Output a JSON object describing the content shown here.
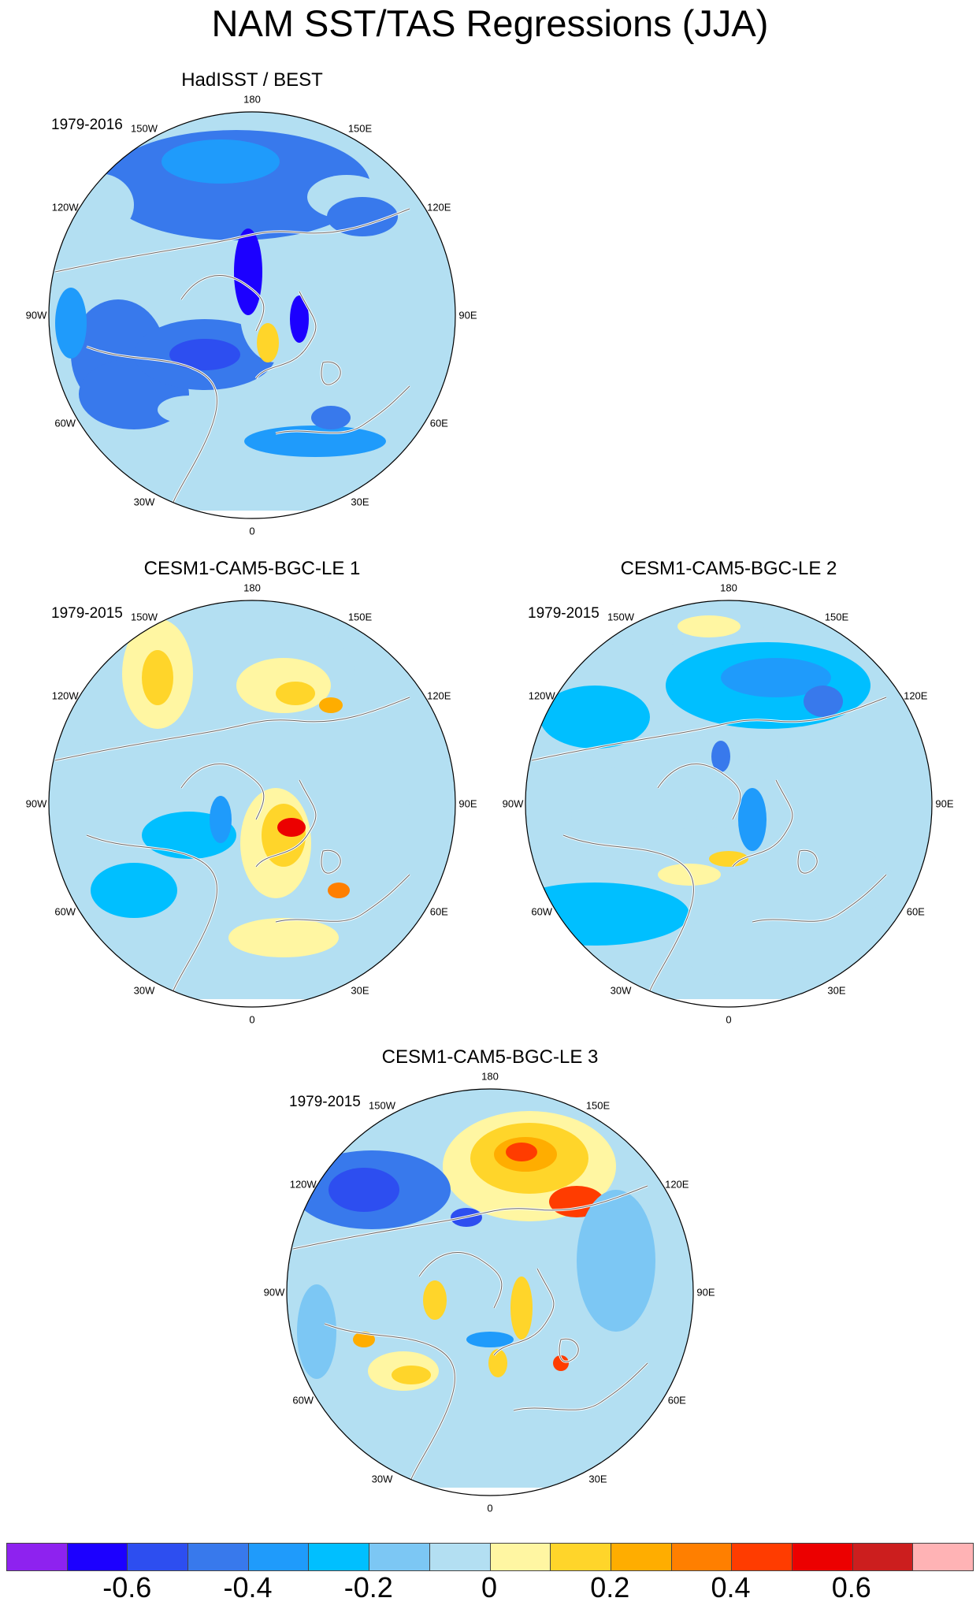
{
  "title": "NAM SST/TAS Regressions (JJA)",
  "longitude_labels": [
    "180",
    "150E",
    "120E",
    "90E",
    "60E",
    "30E",
    "0",
    "30W",
    "60W",
    "90W",
    "120W",
    "150W"
  ],
  "panels": [
    {
      "title": "HadISST / BEST",
      "years": "1979-2016",
      "blobs": [
        {
          "x": -20,
          "y": -165,
          "rx": 170,
          "ry": 70,
          "lvl": 3
        },
        {
          "x": -40,
          "y": -195,
          "rx": 75,
          "ry": 28,
          "lvl": 4
        },
        {
          "x": -195,
          "y": -140,
          "rx": 45,
          "ry": 40,
          "lvl": 7
        },
        {
          "x": 120,
          "y": -150,
          "rx": 50,
          "ry": 28,
          "lvl": 7
        },
        {
          "x": 140,
          "y": -125,
          "rx": 45,
          "ry": 25,
          "lvl": 3
        },
        {
          "x": -170,
          "y": 50,
          "rx": 60,
          "ry": 70,
          "lvl": 3
        },
        {
          "x": -150,
          "y": 100,
          "rx": 70,
          "ry": 45,
          "lvl": 3
        },
        {
          "x": -60,
          "y": 50,
          "rx": 90,
          "ry": 45,
          "lvl": 3
        },
        {
          "x": -60,
          "y": 50,
          "rx": 45,
          "ry": 20,
          "lvl": 2
        },
        {
          "x": -80,
          "y": 120,
          "rx": 40,
          "ry": 18,
          "lvl": 7
        },
        {
          "x": 30,
          "y": 0,
          "rx": 45,
          "ry": 60,
          "lvl": 7
        },
        {
          "x": -5,
          "y": -55,
          "rx": 18,
          "ry": 55,
          "lvl": 1
        },
        {
          "x": 60,
          "y": 5,
          "rx": 12,
          "ry": 30,
          "lvl": 1
        },
        {
          "x": 20,
          "y": 35,
          "rx": 14,
          "ry": 25,
          "lvl": 9
        },
        {
          "x": 80,
          "y": 160,
          "rx": 90,
          "ry": 20,
          "lvl": 4
        },
        {
          "x": 100,
          "y": 130,
          "rx": 25,
          "ry": 15,
          "lvl": 3
        },
        {
          "x": -230,
          "y": 10,
          "rx": 20,
          "ry": 45,
          "lvl": 4
        }
      ]
    },
    {
      "title": "CESM1-CAM5-BGC-LE 1",
      "years": "1979-2015",
      "blobs": [
        {
          "x": -20,
          "y": -170,
          "rx": 150,
          "ry": 65,
          "lvl": 7
        },
        {
          "x": -120,
          "y": -165,
          "rx": 45,
          "ry": 70,
          "lvl": 8
        },
        {
          "x": -120,
          "y": -160,
          "rx": 20,
          "ry": 35,
          "lvl": 9
        },
        {
          "x": 40,
          "y": -150,
          "rx": 60,
          "ry": 35,
          "lvl": 8
        },
        {
          "x": 55,
          "y": -140,
          "rx": 25,
          "ry": 15,
          "lvl": 9
        },
        {
          "x": 100,
          "y": -125,
          "rx": 15,
          "ry": 10,
          "lvl": 10
        },
        {
          "x": -190,
          "y": 30,
          "rx": 75,
          "ry": 110,
          "lvl": 7
        },
        {
          "x": -120,
          "y": -30,
          "rx": 45,
          "ry": 45,
          "lvl": 7
        },
        {
          "x": 140,
          "y": 0,
          "rx": 60,
          "ry": 70,
          "lvl": 7
        },
        {
          "x": 30,
          "y": 50,
          "rx": 45,
          "ry": 70,
          "lvl": 8
        },
        {
          "x": 40,
          "y": 40,
          "rx": 28,
          "ry": 40,
          "lvl": 9
        },
        {
          "x": 50,
          "y": 30,
          "rx": 18,
          "ry": 12,
          "lvl": 13
        },
        {
          "x": -80,
          "y": 40,
          "rx": 60,
          "ry": 30,
          "lvl": 5
        },
        {
          "x": -40,
          "y": 20,
          "rx": 14,
          "ry": 30,
          "lvl": 4
        },
        {
          "x": 40,
          "y": 170,
          "rx": 70,
          "ry": 25,
          "lvl": 8
        },
        {
          "x": 110,
          "y": 110,
          "rx": 14,
          "ry": 10,
          "lvl": 11
        },
        {
          "x": -150,
          "y": 110,
          "rx": 55,
          "ry": 35,
          "lvl": 5
        }
      ]
    },
    {
      "title": "CESM1-CAM5-BGC-LE 2",
      "years": "1979-2015",
      "blobs": [
        {
          "x": -25,
          "y": -225,
          "rx": 70,
          "ry": 30,
          "lvl": 7
        },
        {
          "x": -25,
          "y": -225,
          "rx": 40,
          "ry": 14,
          "lvl": 8
        },
        {
          "x": 50,
          "y": -150,
          "rx": 130,
          "ry": 55,
          "lvl": 5
        },
        {
          "x": 60,
          "y": -160,
          "rx": 70,
          "ry": 25,
          "lvl": 4
        },
        {
          "x": 120,
          "y": -130,
          "rx": 25,
          "ry": 20,
          "lvl": 3
        },
        {
          "x": -170,
          "y": -110,
          "rx": 70,
          "ry": 40,
          "lvl": 5
        },
        {
          "x": -120,
          "y": 20,
          "rx": 80,
          "ry": 70,
          "lvl": 7
        },
        {
          "x": -30,
          "y": 60,
          "rx": 80,
          "ry": 30,
          "lvl": 7
        },
        {
          "x": -50,
          "y": 90,
          "rx": 40,
          "ry": 14,
          "lvl": 8
        },
        {
          "x": 0,
          "y": 70,
          "rx": 25,
          "ry": 10,
          "lvl": 9
        },
        {
          "x": 30,
          "y": 20,
          "rx": 18,
          "ry": 40,
          "lvl": 4
        },
        {
          "x": -10,
          "y": -60,
          "rx": 12,
          "ry": 20,
          "lvl": 3
        },
        {
          "x": -170,
          "y": 140,
          "rx": 120,
          "ry": 40,
          "lvl": 5
        },
        {
          "x": 20,
          "y": 180,
          "rx": 90,
          "ry": 40,
          "lvl": 7
        },
        {
          "x": 150,
          "y": 100,
          "rx": 60,
          "ry": 40,
          "lvl": 7
        },
        {
          "x": 50,
          "y": -60,
          "rx": 25,
          "ry": 30,
          "lvl": 7
        }
      ]
    },
    {
      "title": "CESM1-CAM5-BGC-LE 3",
      "years": "1979-2015",
      "blobs": [
        {
          "x": -40,
          "y": 40,
          "rx": 210,
          "ry": 190,
          "lvl": 7
        },
        {
          "x": 50,
          "y": -160,
          "rx": 110,
          "ry": 70,
          "lvl": 8
        },
        {
          "x": 50,
          "y": -170,
          "rx": 75,
          "ry": 45,
          "lvl": 9
        },
        {
          "x": 45,
          "y": -175,
          "rx": 40,
          "ry": 22,
          "lvl": 10
        },
        {
          "x": 40,
          "y": -178,
          "rx": 20,
          "ry": 12,
          "lvl": 12
        },
        {
          "x": 110,
          "y": -115,
          "rx": 35,
          "ry": 20,
          "lvl": 12
        },
        {
          "x": -150,
          "y": -130,
          "rx": 100,
          "ry": 50,
          "lvl": 3
        },
        {
          "x": -160,
          "y": -130,
          "rx": 45,
          "ry": 28,
          "lvl": 2
        },
        {
          "x": -30,
          "y": -95,
          "rx": 20,
          "ry": 12,
          "lvl": 2
        },
        {
          "x": -110,
          "y": 100,
          "rx": 45,
          "ry": 25,
          "lvl": 8
        },
        {
          "x": -100,
          "y": 105,
          "rx": 25,
          "ry": 12,
          "lvl": 9
        },
        {
          "x": -160,
          "y": 60,
          "rx": 14,
          "ry": 10,
          "lvl": 10
        },
        {
          "x": -70,
          "y": 10,
          "rx": 15,
          "ry": 25,
          "lvl": 9
        },
        {
          "x": 40,
          "y": 20,
          "rx": 14,
          "ry": 40,
          "lvl": 9
        },
        {
          "x": 0,
          "y": 60,
          "rx": 30,
          "ry": 10,
          "lvl": 4
        },
        {
          "x": 10,
          "y": 90,
          "rx": 12,
          "ry": 18,
          "lvl": 9
        },
        {
          "x": 90,
          "y": 90,
          "rx": 10,
          "ry": 10,
          "lvl": 12
        },
        {
          "x": 160,
          "y": -40,
          "rx": 50,
          "ry": 90,
          "lvl": 6
        },
        {
          "x": -220,
          "y": 50,
          "rx": 25,
          "ry": 60,
          "lvl": 6
        }
      ]
    }
  ],
  "colorbar": {
    "colors": [
      "#8e22ef",
      "#1c00ff",
      "#2d4ef0",
      "#3879ec",
      "#1f9bfb",
      "#00bfff",
      "#7cc7f4",
      "#b3dff2",
      "#fff6a2",
      "#ffd52a",
      "#ffad00",
      "#ff7f00",
      "#ff3c00",
      "#ec0000",
      "#cc1e1e",
      "#ffb3b5"
    ],
    "labels": [
      "-0.6",
      "-0.4",
      "-0.2",
      "0",
      "0.2",
      "0.4",
      "0.6"
    ]
  }
}
